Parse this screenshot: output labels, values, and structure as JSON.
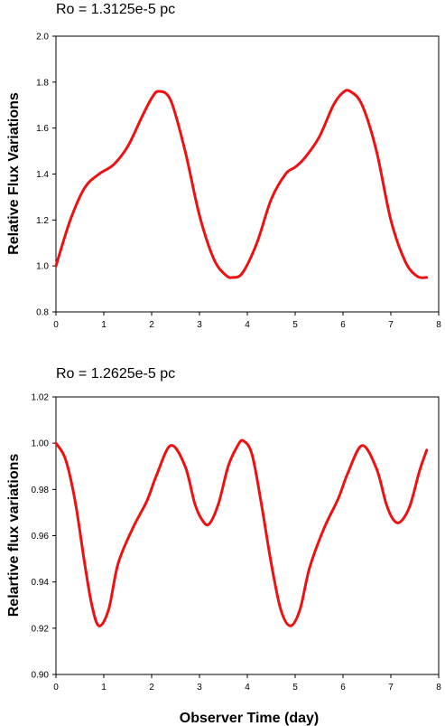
{
  "chart_data": [
    {
      "type": "line",
      "title": "Ro = 1.3125e-5 pc",
      "xlabel": "",
      "ylabel": "Relative Flux Variations",
      "xlim": [
        0,
        8
      ],
      "ylim": [
        0.8,
        2.0
      ],
      "xticks": [
        "0",
        "1",
        "2",
        "3",
        "4",
        "5",
        "6",
        "7",
        "8"
      ],
      "yticks": [
        "0.8",
        "1.0",
        "1.2",
        "1.4",
        "1.6",
        "1.8",
        "2.0"
      ],
      "grid": false,
      "color": "#ee1111",
      "series": [
        {
          "x": [
            0,
            0.3,
            0.6,
            0.9,
            1.2,
            1.5,
            1.8,
            2.0,
            2.15,
            2.4,
            2.7,
            3.0,
            3.3,
            3.55,
            3.7,
            3.9,
            4.2,
            4.5,
            4.8,
            5.0,
            5.2,
            5.5,
            5.8,
            6.0,
            6.15,
            6.4,
            6.7,
            7.0,
            7.3,
            7.55,
            7.75
          ],
          "values": [
            1.0,
            1.2,
            1.34,
            1.4,
            1.44,
            1.52,
            1.65,
            1.73,
            1.76,
            1.72,
            1.5,
            1.22,
            1.03,
            0.96,
            0.95,
            0.97,
            1.1,
            1.29,
            1.4,
            1.43,
            1.47,
            1.56,
            1.7,
            1.755,
            1.76,
            1.7,
            1.5,
            1.2,
            1.02,
            0.955,
            0.95
          ]
        }
      ]
    },
    {
      "type": "line",
      "title": "Ro = 1.2625e-5 pc",
      "xlabel": "Observer Time (day)",
      "ylabel": "Relartive flux variations",
      "xlim": [
        0,
        8
      ],
      "ylim": [
        0.9,
        1.02
      ],
      "xticks": [
        "0",
        "1",
        "2",
        "3",
        "4",
        "5",
        "6",
        "7",
        "8"
      ],
      "yticks": [
        "0.90",
        "0.92",
        "0.94",
        "0.96",
        "0.98",
        "1.00",
        "1.02"
      ],
      "grid": false,
      "color": "#ee1111",
      "series": [
        {
          "x": [
            0,
            0.2,
            0.4,
            0.6,
            0.75,
            0.9,
            1.1,
            1.3,
            1.6,
            1.9,
            2.1,
            2.4,
            2.7,
            2.9,
            3.05,
            3.2,
            3.4,
            3.6,
            3.8,
            3.92,
            4.1,
            4.3,
            4.5,
            4.7,
            4.9,
            5.1,
            5.3,
            5.6,
            5.9,
            6.1,
            6.4,
            6.7,
            6.9,
            7.05,
            7.2,
            7.4,
            7.6,
            7.75
          ],
          "values": [
            1.0,
            0.993,
            0.975,
            0.948,
            0.93,
            0.921,
            0.928,
            0.948,
            0.963,
            0.975,
            0.986,
            0.999,
            0.99,
            0.974,
            0.967,
            0.965,
            0.974,
            0.99,
            0.999,
            1.001,
            0.995,
            0.973,
            0.948,
            0.928,
            0.921,
            0.928,
            0.946,
            0.963,
            0.976,
            0.987,
            0.999,
            0.989,
            0.974,
            0.967,
            0.966,
            0.973,
            0.988,
            0.997
          ]
        }
      ]
    }
  ]
}
